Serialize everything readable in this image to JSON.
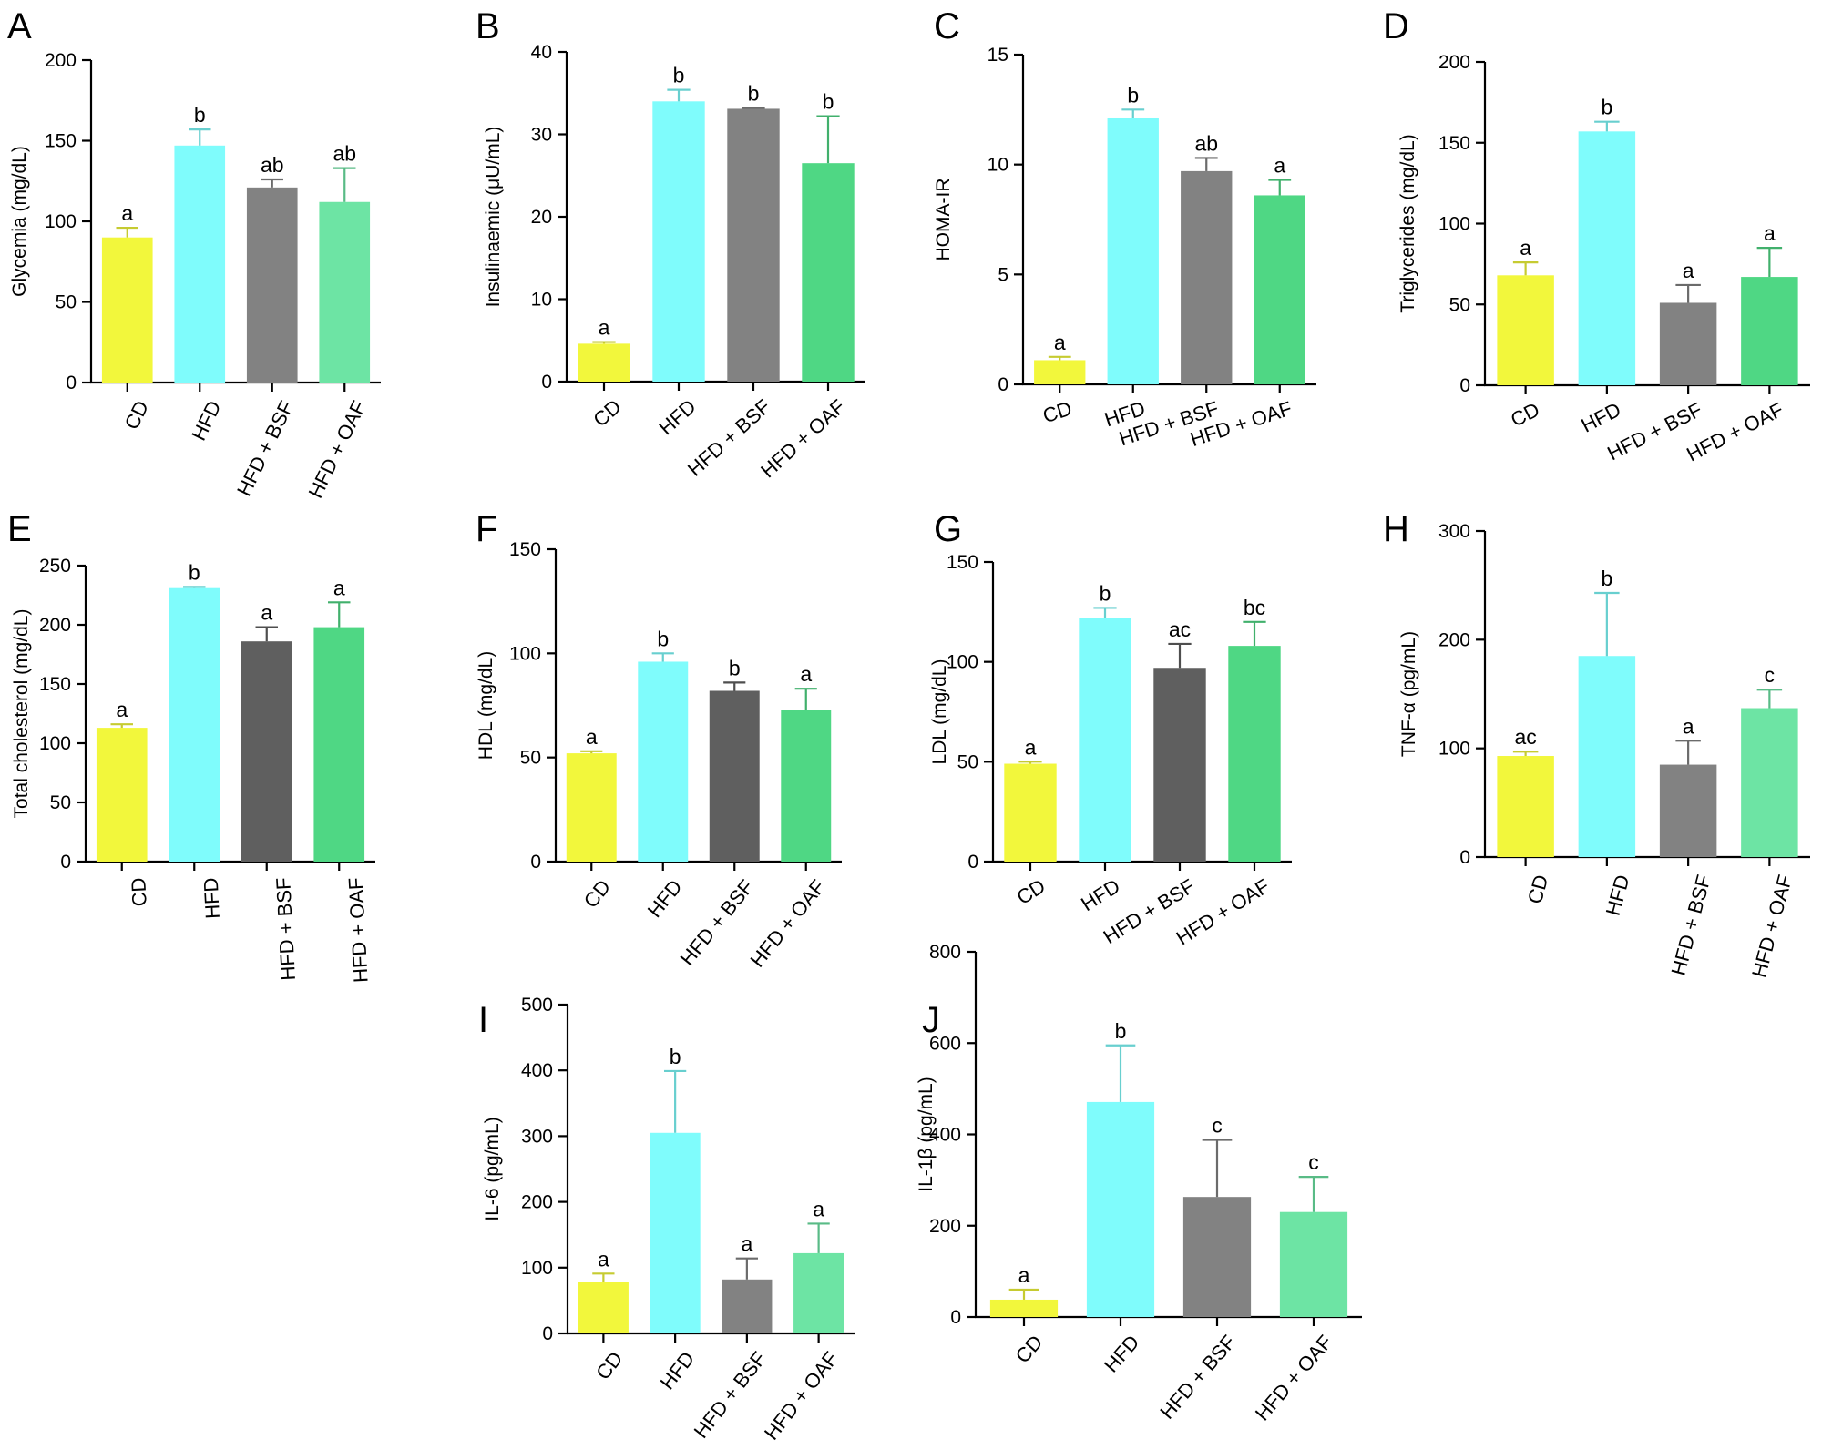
{
  "chart_data": [
    {
      "type": "bar",
      "panel": "A",
      "ylabel": "Glycemia (mg/dL)",
      "categories": [
        "CD",
        "HFD",
        "HFD + BSF",
        "HFD + OAF"
      ],
      "values": [
        90,
        147,
        121,
        112
      ],
      "errors": [
        6,
        10,
        5,
        21
      ],
      "labels": [
        "a",
        "b",
        "ab",
        "ab"
      ],
      "ylim": [
        0,
        200
      ],
      "yticks": [
        "0",
        "50",
        "100",
        "150",
        "200"
      ],
      "colors": [
        "#f2f73c",
        "#7ffcfc",
        "#828282",
        "#6de4a4"
      ]
    },
    {
      "type": "bar",
      "panel": "B",
      "ylabel": "Insulinaemic  (μU/mL)",
      "categories": [
        "CD",
        "HFD",
        "HFD + BSF",
        "HFD + OAF"
      ],
      "values": [
        4.6,
        34,
        33.1,
        26.5
      ],
      "errors": [
        0.2,
        1.4,
        0.1,
        5.7
      ],
      "labels": [
        "a",
        "b",
        "b",
        "b"
      ],
      "ylim": [
        0,
        40
      ],
      "yticks": [
        "0",
        "10",
        "20",
        "30",
        "40"
      ],
      "colors": [
        "#f2f73c",
        "#7ffcfc",
        "#828282",
        "#4fd784"
      ]
    },
    {
      "type": "bar",
      "panel": "C",
      "ylabel": "HOMA-IR",
      "categories": [
        "CD",
        "HFD",
        "HFD + BSF",
        "HFD + OAF"
      ],
      "values": [
        1.1,
        12.1,
        9.7,
        8.6
      ],
      "errors": [
        0.15,
        0.4,
        0.6,
        0.7
      ],
      "labels": [
        "a",
        "b",
        "ab",
        "a"
      ],
      "ylim": [
        0,
        15
      ],
      "yticks": [
        "0",
        "5",
        "10",
        "15"
      ],
      "colors": [
        "#f2f73c",
        "#7ffcfc",
        "#828282",
        "#4fd784"
      ]
    },
    {
      "type": "bar",
      "panel": "D",
      "ylabel": "Triglycerides  (mg/dL)",
      "categories": [
        "CD",
        "HFD",
        "HFD + BSF",
        "HFD + OAF"
      ],
      "values": [
        68,
        157,
        51,
        67
      ],
      "errors": [
        8,
        6,
        11,
        18
      ],
      "labels": [
        "a",
        "b",
        "a",
        "a"
      ],
      "ylim": [
        0,
        200
      ],
      "yticks": [
        "0",
        "50",
        "100",
        "150",
        "200"
      ],
      "colors": [
        "#f2f73c",
        "#7ffcfc",
        "#828282",
        "#4fd784"
      ]
    },
    {
      "type": "bar",
      "panel": "E",
      "ylabel": "Total cholesterol (mg/dL)",
      "categories": [
        "CD",
        "HFD",
        "HFD + BSF",
        "HFD + OAF"
      ],
      "values": [
        113,
        231,
        186,
        198
      ],
      "errors": [
        3,
        1,
        12,
        21
      ],
      "labels": [
        "a",
        "b",
        "a",
        "a"
      ],
      "ylim": [
        0,
        250
      ],
      "yticks": [
        "0",
        "50",
        "100",
        "150",
        "200",
        "250"
      ],
      "colors": [
        "#f2f73c",
        "#7ffcfc",
        "#5f5f5f",
        "#4fd784"
      ]
    },
    {
      "type": "bar",
      "panel": "F",
      "ylabel": "HDL (mg/dL)",
      "categories": [
        "CD",
        "HFD",
        "HFD + BSF",
        "HFD + OAF"
      ],
      "values": [
        52,
        96,
        82,
        73
      ],
      "errors": [
        1,
        4,
        4,
        10
      ],
      "labels": [
        "a",
        "b",
        "b",
        "a"
      ],
      "ylim": [
        0,
        150
      ],
      "yticks": [
        "0",
        "50",
        "100",
        "150"
      ],
      "colors": [
        "#f2f73c",
        "#7ffcfc",
        "#5f5f5f",
        "#4fd784"
      ]
    },
    {
      "type": "bar",
      "panel": "G",
      "ylabel": "LDL (mg/dL)",
      "categories": [
        "CD",
        "HFD",
        "HFD + BSF",
        "HFD + OAF"
      ],
      "values": [
        49,
        122,
        97,
        108
      ],
      "errors": [
        1,
        5,
        12,
        12
      ],
      "labels": [
        "a",
        "b",
        "ac",
        "bc"
      ],
      "ylim": [
        0,
        150
      ],
      "yticks": [
        "0",
        "50",
        "100",
        "150"
      ],
      "colors": [
        "#f2f73c",
        "#7ffcfc",
        "#5f5f5f",
        "#4fd784"
      ]
    },
    {
      "type": "bar",
      "panel": "H",
      "ylabel": "TNF-α (pg/mL)",
      "categories": [
        "CD",
        "HFD",
        "HFD + BSF",
        "HFD + OAF"
      ],
      "values": [
        93,
        185,
        85,
        137
      ],
      "errors": [
        4,
        58,
        22,
        17
      ],
      "labels": [
        "ac",
        "b",
        "a",
        "c"
      ],
      "ylim": [
        0,
        300
      ],
      "yticks": [
        "0",
        "100",
        "200",
        "300"
      ],
      "colors": [
        "#f2f73c",
        "#7ffcfc",
        "#828282",
        "#6de4a4"
      ]
    },
    {
      "type": "bar",
      "panel": "I",
      "ylabel": "IL-6 (pg/mL)",
      "categories": [
        "CD",
        "HFD",
        "HFD + BSF",
        "HFD + OAF"
      ],
      "values": [
        78,
        305,
        82,
        122
      ],
      "errors": [
        13,
        94,
        32,
        45
      ],
      "labels": [
        "a",
        "b",
        "a",
        "a"
      ],
      "ylim": [
        0,
        500
      ],
      "yticks": [
        "0",
        "100",
        "200",
        "300",
        "400",
        "500"
      ],
      "colors": [
        "#f2f73c",
        "#7ffcfc",
        "#828282",
        "#6de4a4"
      ]
    },
    {
      "type": "bar",
      "panel": "J",
      "ylabel": "IL-1β (pg/mL)",
      "categories": [
        "CD",
        "HFD",
        "HFD + BSF",
        "HFD + OAF"
      ],
      "values": [
        38,
        471,
        263,
        230
      ],
      "errors": [
        22,
        124,
        125,
        77
      ],
      "labels": [
        "a",
        "b",
        "c",
        "c"
      ],
      "ylim": [
        0,
        800
      ],
      "yticks": [
        "0",
        "200",
        "400",
        "600",
        "800"
      ],
      "colors": [
        "#f2f73c",
        "#7ffcfc",
        "#828282",
        "#6de4a4"
      ]
    }
  ]
}
